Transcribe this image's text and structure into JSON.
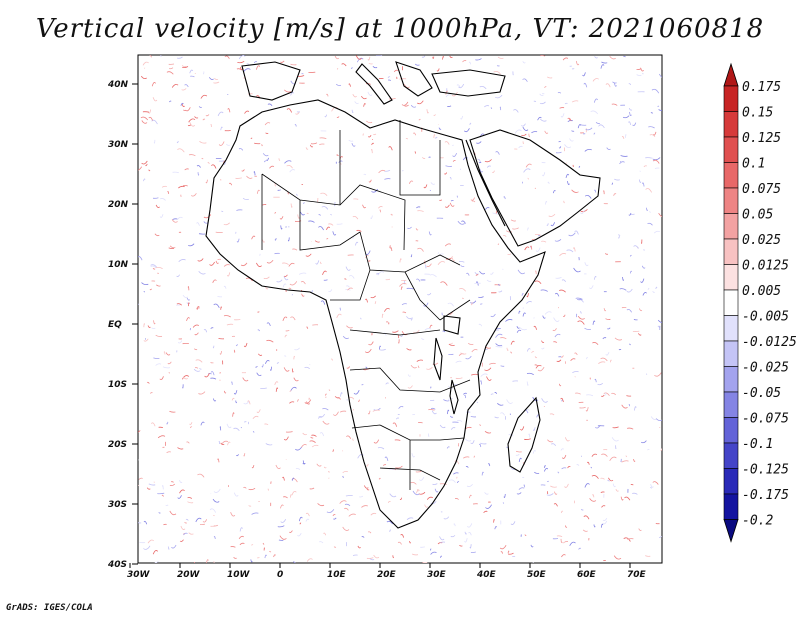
{
  "title": "Vertical velocity [m/s] at 1000hPa, VT: 2021060818",
  "credit": "GrADS: IGES/COLA",
  "map": {
    "lon_ticks": [
      "30W",
      "20W",
      "10W",
      "0",
      "10E",
      "20E",
      "30E",
      "40E",
      "50E",
      "60E",
      "70E"
    ],
    "lat_ticks": [
      "40N",
      "30N",
      "20N",
      "10N",
      "EQ",
      "10S",
      "20S",
      "30S",
      "40S"
    ],
    "lon_range": [
      -30,
      75
    ],
    "lat_range": [
      -40,
      45
    ]
  },
  "colorbar": {
    "labels": [
      "0.175",
      "0.15",
      "0.125",
      "0.1",
      "0.075",
      "0.05",
      "0.025",
      "0.0125",
      "0.005",
      "-0.005",
      "-0.0125",
      "-0.025",
      "-0.05",
      "-0.075",
      "-0.1",
      "-0.125",
      "-0.175",
      "-0.2"
    ],
    "colors": [
      "#b01717",
      "#c72424",
      "#d63a3a",
      "#e05050",
      "#e86868",
      "#ee8484",
      "#f3a2a2",
      "#f8c2c2",
      "#fce1e1",
      "#ffffff",
      "#e1e1fc",
      "#c4c4f6",
      "#a3a3ee",
      "#8484e4",
      "#6363d8",
      "#4444c8",
      "#2a2ab8",
      "#1414a0",
      "#0a0a80"
    ]
  }
}
